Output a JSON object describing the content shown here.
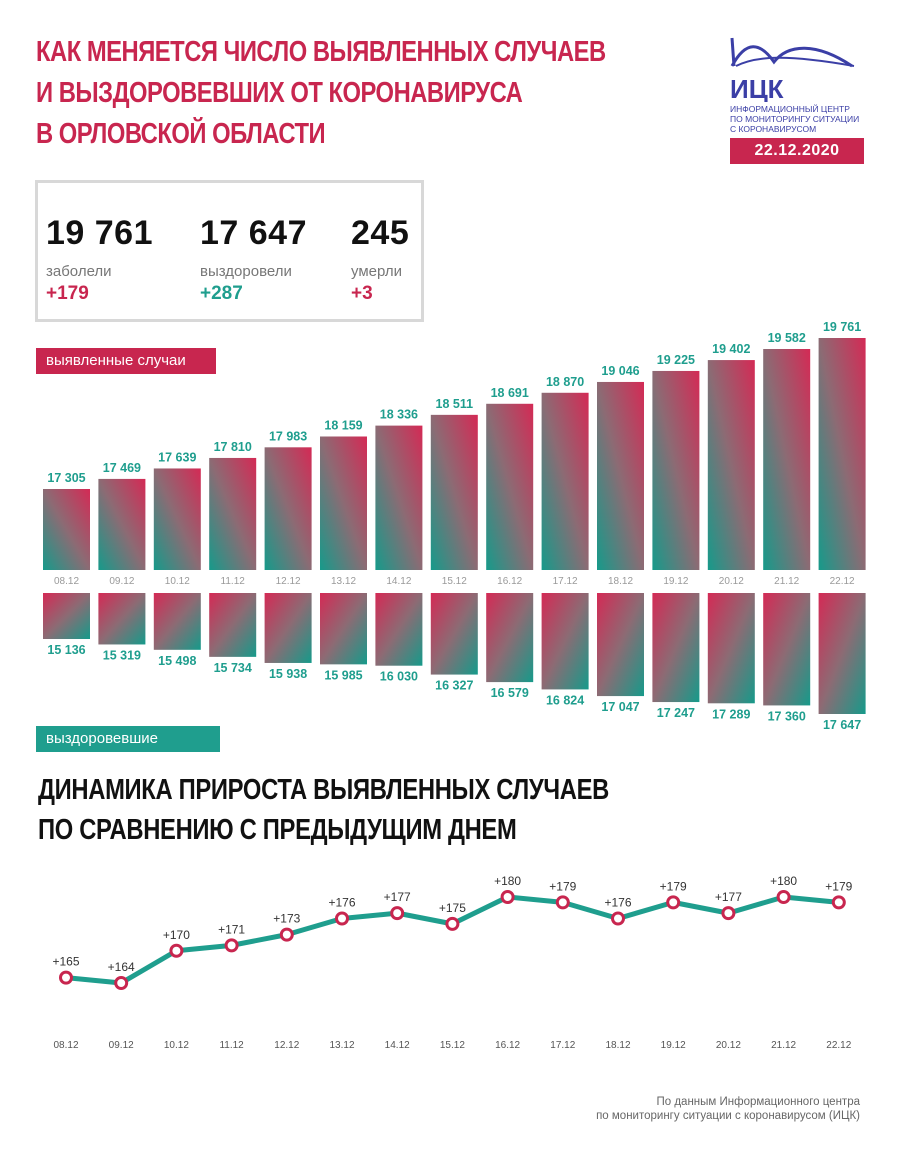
{
  "header": {
    "title_lines": [
      "Как меняется число выявленных случаев",
      "и выздоровевших от коронавируса",
      "в Орловской области"
    ],
    "logo_text": "ИЦК",
    "logo_subtitle_lines": [
      "Информационный центр",
      "по мониторингу ситуации",
      "с коронавирусом"
    ],
    "date": "22.12.2020"
  },
  "colors": {
    "accent": "#c8264f",
    "teal": "#1f9e8e",
    "logo": "#3b3fa6"
  },
  "summary": {
    "cases": {
      "value": "19 761",
      "label": "заболели",
      "delta": "+179"
    },
    "recovered": {
      "value": "17 647",
      "label": "выздоровели",
      "delta": "+287"
    },
    "deaths": {
      "value": "245",
      "label": "умерли",
      "delta": "+3"
    }
  },
  "tags": {
    "cases": "выявленные случаи",
    "recovered": "выздоровевшие"
  },
  "line_title_lines": [
    "Динамика прироста выявленных случаев",
    "по сравнению с предыдущим днем"
  ],
  "source_lines": [
    "По данным Информационного центра",
    "по мониторингу ситуации с коронавирусом (ИЦК)"
  ],
  "chart_data": [
    {
      "type": "bar",
      "categories": [
        "08.12",
        "09.12",
        "10.12",
        "11.12",
        "12.12",
        "13.12",
        "14.12",
        "15.12",
        "16.12",
        "17.12",
        "18.12",
        "19.12",
        "20.12",
        "21.12",
        "22.12"
      ],
      "series": [
        {
          "name": "выявленные случаи",
          "values": [
            17305,
            17469,
            17639,
            17810,
            17983,
            18159,
            18336,
            18511,
            18691,
            18870,
            19046,
            19225,
            19402,
            19582,
            19761
          ],
          "labels": [
            "17 305",
            "17 469",
            "17 639",
            "17 810",
            "17 983",
            "18 159",
            "18 336",
            "18 511",
            "18 691",
            "18 870",
            "19 046",
            "19 225",
            "19 402",
            "19 582",
            "19 761"
          ]
        },
        {
          "name": "выздоровевшие",
          "values": [
            15136,
            15319,
            15498,
            15734,
            15938,
            15985,
            16030,
            16327,
            16579,
            16824,
            17047,
            17247,
            17289,
            17360,
            17647
          ],
          "labels": [
            "15 136",
            "15 319",
            "15 498",
            "15 734",
            "15 938",
            "15 985",
            "16 030",
            "16 327",
            "16 579",
            "16 824",
            "17 047",
            "17 247",
            "17 289",
            "17 360",
            "17 647"
          ]
        }
      ]
    },
    {
      "type": "line",
      "categories": [
        "08.12",
        "09.12",
        "10.12",
        "11.12",
        "12.12",
        "13.12",
        "14.12",
        "15.12",
        "16.12",
        "17.12",
        "18.12",
        "19.12",
        "20.12",
        "21.12",
        "22.12"
      ],
      "values": [
        165,
        164,
        170,
        171,
        173,
        176,
        177,
        175,
        180,
        179,
        176,
        179,
        177,
        180,
        179
      ],
      "labels": [
        "+165",
        "+164",
        "+170",
        "+171",
        "+173",
        "+176",
        "+177",
        "+175",
        "+180",
        "+179",
        "+176",
        "+179",
        "+177",
        "+180",
        "+179"
      ]
    }
  ]
}
